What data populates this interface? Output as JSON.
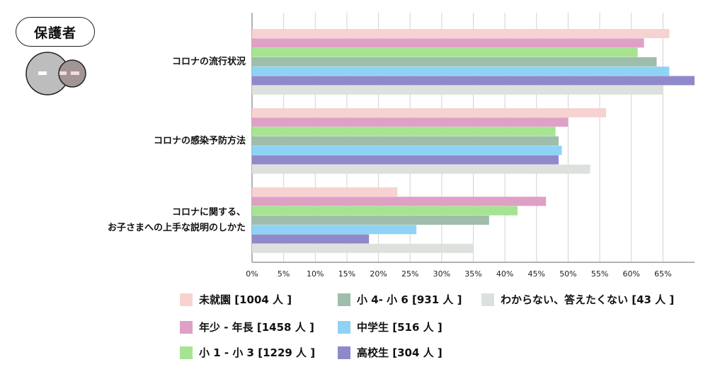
{
  "header": {
    "badge_label": "保護者"
  },
  "chart_data": {
    "type": "bar",
    "orientation": "horizontal",
    "categories": [
      "コロナの流行状況",
      "コロナの感染予防方法",
      "コロナに関する、\nお子さまへの上手な説明のしかた"
    ],
    "xlim": [
      0,
      70
    ],
    "xticks": [
      "0%",
      "5%",
      "10%",
      "15%",
      "20%",
      "25%",
      "30%",
      "35%",
      "40%",
      "45%",
      "50%",
      "55%",
      "60%",
      "65%"
    ],
    "grid": true,
    "legend_position": "bottom",
    "series": [
      {
        "name": "未就園 [1004 人 ]",
        "color": "#f6d3d0",
        "values": [
          66,
          56,
          23
        ]
      },
      {
        "name": "年少 - 年長 [1458 人 ]",
        "color": "#dfa0c6",
        "values": [
          62,
          50,
          46.5
        ]
      },
      {
        "name": "小 1 - 小 3 [1229 人 ]",
        "color": "#a6e491",
        "values": [
          61,
          48,
          42
        ]
      },
      {
        "name": "小 4- 小 6 [931 人 ]",
        "color": "#9ebdaa",
        "values": [
          64,
          48.5,
          37.5
        ]
      },
      {
        "name": "中学生 [516 人 ]",
        "color": "#8ed3f6",
        "values": [
          66,
          49,
          26
        ]
      },
      {
        "name": "高校生 [304 人 ]",
        "color": "#8f89cb",
        "values": [
          70,
          48.5,
          18.5
        ]
      },
      {
        "name": "わからない、答えたくない [43 人 ]",
        "color": "#dde1dd",
        "values": [
          65,
          53.5,
          35
        ]
      }
    ]
  }
}
